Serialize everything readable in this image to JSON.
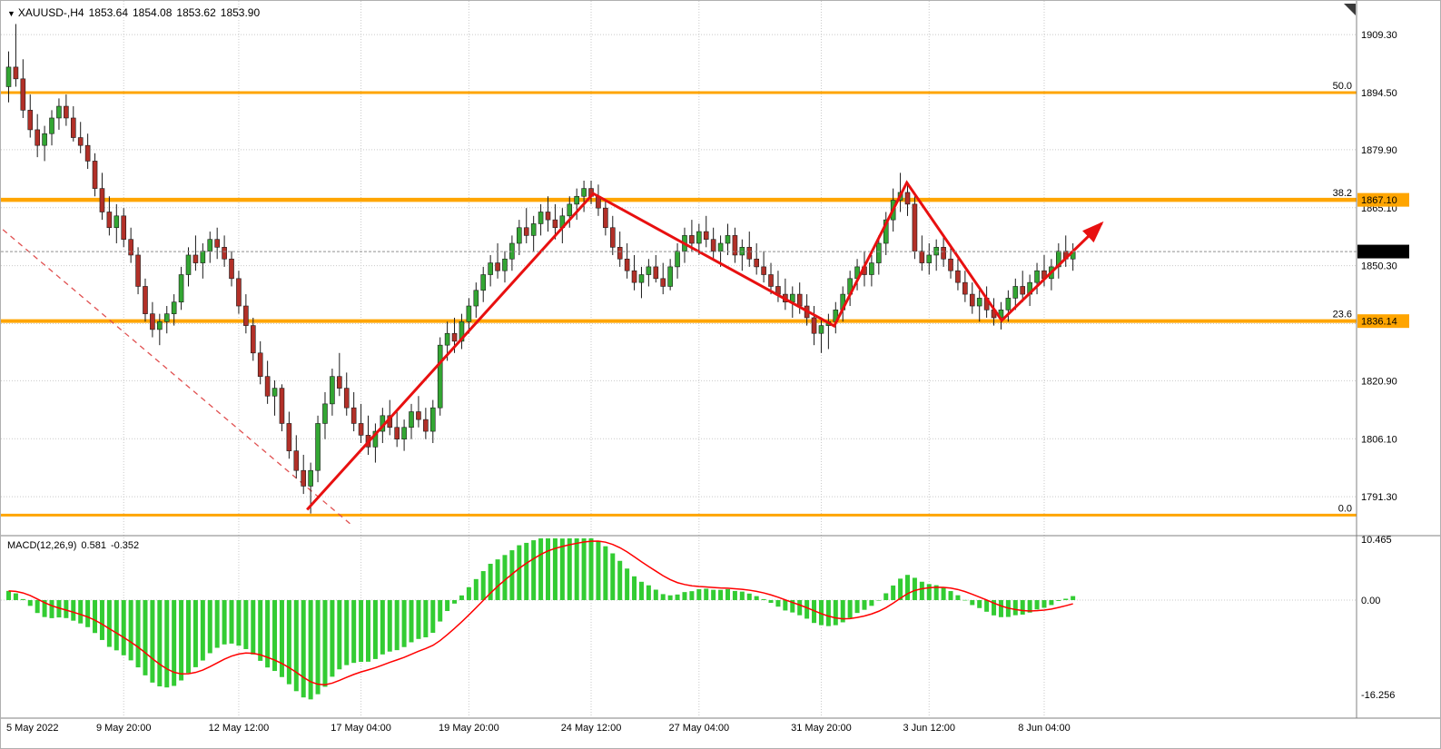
{
  "header": {
    "dropdown_icon": "▼",
    "symbol": "XAUUSD-,H4",
    "open": "1853.64",
    "high": "1854.08",
    "low": "1853.62",
    "close": "1853.90"
  },
  "macd_panel": {
    "label": "MACD(12,26,9)",
    "main_value": "0.581",
    "signal_value": "-0.352",
    "axis_labels": [
      {
        "text": "10.465",
        "value": 10.465
      },
      {
        "text": "0.00",
        "value": 0
      },
      {
        "text": "-16.256",
        "value": -16.256
      }
    ]
  },
  "price_axis": {
    "gridline_prices": [
      1909.3,
      1894.5,
      1879.9,
      1865.1,
      1850.3,
      1835.5,
      1820.9,
      1806.1,
      1791.3
    ],
    "labels": [
      "1909.30",
      "1894.50",
      "1879.90",
      "1865.10",
      "1850.30",
      "1835.50",
      "1820.90",
      "1806.10",
      "1791.30"
    ],
    "badges": [
      {
        "text": "1867.10",
        "price": 1867.1,
        "type": "fibo"
      },
      {
        "text": "1853.90",
        "price": 1853.9,
        "type": "current"
      },
      {
        "text": "1836.14",
        "price": 1836.14,
        "type": "fibo"
      }
    ]
  },
  "time_axis": [
    {
      "label": "5 May 2022",
      "index": 0
    },
    {
      "label": "9 May 20:00",
      "index": 16
    },
    {
      "label": "12 May 12:00",
      "index": 32
    },
    {
      "label": "17 May 04:00",
      "index": 49
    },
    {
      "label": "19 May 20:00",
      "index": 64
    },
    {
      "label": "24 May 12:00",
      "index": 81
    },
    {
      "label": "27 May 04:00",
      "index": 96
    },
    {
      "label": "31 May 20:00",
      "index": 113
    },
    {
      "label": "3 Jun 12:00",
      "index": 128
    },
    {
      "label": "8 Jun 04:00",
      "index": 144
    }
  ],
  "chart_data": {
    "type": "candlestick",
    "symbol": "XAUUSD-",
    "timeframe": "H4",
    "current_price": 1853.9,
    "price_range_visible": [
      1781.6,
      1917.9
    ],
    "indicator": {
      "name": "MACD",
      "params": [
        12,
        26,
        9
      ],
      "main": 0.581,
      "signal": -0.352,
      "scale": [
        -16.256,
        10.465
      ]
    },
    "fibonacci_levels": [
      {
        "ratio": "50.0",
        "price": 1894.5
      },
      {
        "ratio": "38.2",
        "price": 1867.1
      },
      {
        "ratio": "23.6",
        "price": 1836.14
      },
      {
        "ratio": "0.0",
        "price": 1786.6
      }
    ],
    "trend_arrows": {
      "points": [
        {
          "i": 41.5,
          "p": 1788.0
        },
        {
          "i": 81.3,
          "p": 1868.7
        },
        {
          "i": 114.8,
          "p": 1834.9
        },
        {
          "i": 124.9,
          "p": 1871.5
        },
        {
          "i": 138.1,
          "p": 1836.3
        },
        {
          "i": 152.0,
          "p": 1861.1
        }
      ]
    },
    "trendline_dashed": {
      "from": {
        "i": -0.8,
        "p": 1859.5
      },
      "to": {
        "i": 47.8,
        "p": 1783.9
      }
    },
    "colors": {
      "candle_up": "#33A633",
      "candle_down": "#B23028",
      "candle_outline": "#1a1a1a",
      "fibo": "#FFA500",
      "trend_arrow": "#E81010",
      "trendline": "#E05050",
      "macd_bar": "#33CC33",
      "macd_signal": "#FF0000",
      "grid": "#c9c9c9",
      "separator": "#808080",
      "axis_text": "#000000",
      "current_price_line": "#909090",
      "badge_current_bg": "#000000",
      "badge_current_text": "#FFFFFF",
      "badge_fibo_bg": "#FFA500",
      "badge_fibo_text": "#000000"
    },
    "candles": [
      [
        1896,
        1905,
        1892,
        1901
      ],
      [
        1901,
        1912,
        1896,
        1898
      ],
      [
        1898,
        1903,
        1888,
        1890
      ],
      [
        1890,
        1894,
        1883,
        1885
      ],
      [
        1885,
        1889,
        1878,
        1881
      ],
      [
        1881,
        1886,
        1877,
        1884
      ],
      [
        1884,
        1890,
        1881,
        1888
      ],
      [
        1888,
        1893,
        1885,
        1891
      ],
      [
        1891,
        1894,
        1886,
        1888
      ],
      [
        1888,
        1891,
        1882,
        1883
      ],
      [
        1883,
        1887,
        1879,
        1881
      ],
      [
        1881,
        1884,
        1875,
        1877
      ],
      [
        1877,
        1879,
        1868,
        1870
      ],
      [
        1870,
        1874,
        1862,
        1864
      ],
      [
        1864,
        1868,
        1858,
        1860
      ],
      [
        1860,
        1866,
        1856,
        1863
      ],
      [
        1863,
        1865,
        1855,
        1857
      ],
      [
        1857,
        1860,
        1851,
        1853
      ],
      [
        1853,
        1855,
        1843,
        1845
      ],
      [
        1845,
        1847,
        1836,
        1838
      ],
      [
        1838,
        1841,
        1832,
        1834
      ],
      [
        1834,
        1838,
        1830,
        1836
      ],
      [
        1836,
        1840,
        1833,
        1838
      ],
      [
        1838,
        1843,
        1835,
        1841
      ],
      [
        1841,
        1850,
        1839,
        1848
      ],
      [
        1848,
        1855,
        1845,
        1853
      ],
      [
        1853,
        1858,
        1849,
        1851
      ],
      [
        1851,
        1856,
        1847,
        1854
      ],
      [
        1854,
        1859,
        1851,
        1857
      ],
      [
        1857,
        1860,
        1852,
        1855
      ],
      [
        1855,
        1858,
        1850,
        1852
      ],
      [
        1852,
        1854,
        1845,
        1847
      ],
      [
        1847,
        1849,
        1838,
        1840
      ],
      [
        1840,
        1843,
        1833,
        1835
      ],
      [
        1835,
        1837,
        1826,
        1828
      ],
      [
        1828,
        1831,
        1820,
        1822
      ],
      [
        1822,
        1826,
        1815,
        1817
      ],
      [
        1817,
        1821,
        1812,
        1819
      ],
      [
        1819,
        1820,
        1808,
        1810
      ],
      [
        1810,
        1813,
        1801,
        1803
      ],
      [
        1803,
        1807,
        1796,
        1798
      ],
      [
        1798,
        1802,
        1792,
        1794
      ],
      [
        1794,
        1800,
        1787,
        1798
      ],
      [
        1798,
        1812,
        1795,
        1810
      ],
      [
        1810,
        1818,
        1806,
        1815
      ],
      [
        1815,
        1824,
        1812,
        1822
      ],
      [
        1822,
        1828,
        1817,
        1819
      ],
      [
        1819,
        1823,
        1812,
        1814
      ],
      [
        1814,
        1818,
        1808,
        1810
      ],
      [
        1810,
        1815,
        1805,
        1807
      ],
      [
        1807,
        1812,
        1802,
        1804
      ],
      [
        1804,
        1810,
        1800,
        1808
      ],
      [
        1808,
        1814,
        1805,
        1812
      ],
      [
        1812,
        1816,
        1807,
        1809
      ],
      [
        1809,
        1813,
        1804,
        1806
      ],
      [
        1806,
        1811,
        1803,
        1809
      ],
      [
        1809,
        1815,
        1806,
        1813
      ],
      [
        1813,
        1817,
        1809,
        1811
      ],
      [
        1811,
        1814,
        1806,
        1808
      ],
      [
        1808,
        1816,
        1805,
        1814
      ],
      [
        1814,
        1832,
        1812,
        1830
      ],
      [
        1830,
        1836,
        1826,
        1833
      ],
      [
        1833,
        1837,
        1828,
        1831
      ],
      [
        1831,
        1838,
        1829,
        1836
      ],
      [
        1836,
        1842,
        1833,
        1840
      ],
      [
        1840,
        1846,
        1837,
        1844
      ],
      [
        1844,
        1850,
        1841,
        1848
      ],
      [
        1848,
        1853,
        1845,
        1851
      ],
      [
        1851,
        1856,
        1847,
        1849
      ],
      [
        1849,
        1854,
        1846,
        1852
      ],
      [
        1852,
        1858,
        1849,
        1856
      ],
      [
        1856,
        1862,
        1853,
        1860
      ],
      [
        1860,
        1865,
        1856,
        1858
      ],
      [
        1858,
        1863,
        1854,
        1861
      ],
      [
        1861,
        1866,
        1858,
        1864
      ],
      [
        1864,
        1868,
        1859,
        1862
      ],
      [
        1862,
        1866,
        1857,
        1860
      ],
      [
        1860,
        1865,
        1856,
        1863
      ],
      [
        1863,
        1868,
        1860,
        1866
      ],
      [
        1866,
        1870,
        1862,
        1868
      ],
      [
        1868,
        1872,
        1864,
        1870
      ],
      [
        1870,
        1872,
        1866,
        1868
      ],
      [
        1868,
        1871,
        1863,
        1865
      ],
      [
        1865,
        1867,
        1858,
        1860
      ],
      [
        1860,
        1863,
        1853,
        1855
      ],
      [
        1855,
        1859,
        1850,
        1852
      ],
      [
        1852,
        1856,
        1847,
        1849
      ],
      [
        1849,
        1853,
        1844,
        1846
      ],
      [
        1846,
        1850,
        1842,
        1848
      ],
      [
        1848,
        1852,
        1845,
        1850
      ],
      [
        1850,
        1853,
        1846,
        1847
      ],
      [
        1847,
        1851,
        1843,
        1845
      ],
      [
        1845,
        1852,
        1844,
        1850
      ],
      [
        1850,
        1856,
        1847,
        1854
      ],
      [
        1854,
        1860,
        1851,
        1858
      ],
      [
        1858,
        1862,
        1854,
        1856
      ],
      [
        1856,
        1861,
        1853,
        1859
      ],
      [
        1859,
        1863,
        1855,
        1857
      ],
      [
        1857,
        1860,
        1852,
        1854
      ],
      [
        1854,
        1858,
        1850,
        1856
      ],
      [
        1856,
        1861,
        1853,
        1858
      ],
      [
        1858,
        1860,
        1851,
        1853
      ],
      [
        1853,
        1857,
        1849,
        1855
      ],
      [
        1855,
        1859,
        1850,
        1852
      ],
      [
        1852,
        1856,
        1848,
        1850
      ],
      [
        1850,
        1854,
        1846,
        1848
      ],
      [
        1848,
        1851,
        1843,
        1845
      ],
      [
        1845,
        1849,
        1841,
        1843
      ],
      [
        1843,
        1847,
        1839,
        1841
      ],
      [
        1841,
        1845,
        1837,
        1843
      ],
      [
        1843,
        1846,
        1838,
        1840
      ],
      [
        1840,
        1843,
        1835,
        1837
      ],
      [
        1837,
        1840,
        1830,
        1833
      ],
      [
        1833,
        1837,
        1828,
        1835
      ],
      [
        1835,
        1838,
        1829,
        1836
      ],
      [
        1836,
        1841,
        1833,
        1839
      ],
      [
        1839,
        1845,
        1836,
        1843
      ],
      [
        1843,
        1849,
        1840,
        1847
      ],
      [
        1847,
        1852,
        1844,
        1850
      ],
      [
        1850,
        1854,
        1845,
        1848
      ],
      [
        1848,
        1853,
        1845,
        1851
      ],
      [
        1851,
        1858,
        1848,
        1856
      ],
      [
        1856,
        1864,
        1853,
        1862
      ],
      [
        1862,
        1870,
        1859,
        1867
      ],
      [
        1867,
        1874,
        1864,
        1869
      ],
      [
        1869,
        1871,
        1863,
        1866
      ],
      [
        1866,
        1868,
        1852,
        1854
      ],
      [
        1854,
        1858,
        1849,
        1851
      ],
      [
        1851,
        1856,
        1848,
        1853
      ],
      [
        1853,
        1857,
        1849,
        1855
      ],
      [
        1855,
        1858,
        1850,
        1852
      ],
      [
        1852,
        1855,
        1847,
        1849
      ],
      [
        1849,
        1852,
        1844,
        1846
      ],
      [
        1846,
        1849,
        1841,
        1843
      ],
      [
        1843,
        1846,
        1838,
        1840
      ],
      [
        1840,
        1844,
        1836,
        1842
      ],
      [
        1842,
        1845,
        1837,
        1839
      ],
      [
        1839,
        1842,
        1835,
        1837
      ],
      [
        1837,
        1841,
        1834,
        1839
      ],
      [
        1839,
        1844,
        1836,
        1842
      ],
      [
        1842,
        1847,
        1839,
        1845
      ],
      [
        1845,
        1849,
        1841,
        1843
      ],
      [
        1843,
        1848,
        1840,
        1846
      ],
      [
        1846,
        1851,
        1843,
        1849
      ],
      [
        1849,
        1853,
        1845,
        1847
      ],
      [
        1847,
        1852,
        1844,
        1850
      ],
      [
        1850,
        1856,
        1847,
        1854
      ],
      [
        1854,
        1858,
        1850,
        1852
      ],
      [
        1852,
        1856,
        1849,
        1853.9
      ]
    ]
  }
}
